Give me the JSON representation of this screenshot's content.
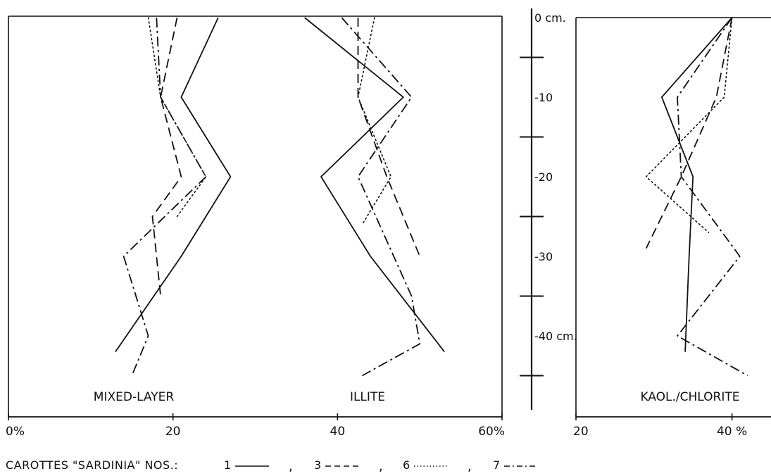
{
  "chart_data": [
    {
      "type": "line",
      "panel": "left",
      "x_ticks": [
        "0%",
        "20",
        "40",
        "60%"
      ],
      "xlim": [
        0,
        60
      ],
      "ylim": [
        0,
        -48
      ],
      "labels": [
        "MIXED-LAYER",
        "ILLITE"
      ],
      "series": [
        {
          "label_ref": "MIXED-LAYER",
          "style": "solid",
          "points": [
            [
              25.5,
              0
            ],
            [
              21,
              -10
            ],
            [
              27,
              -20
            ],
            [
              21,
              -30
            ],
            [
              13,
              -42
            ]
          ]
        },
        {
          "label_ref": "MIXED-LAYER",
          "style": "dashed",
          "points": [
            [
              20.5,
              0
            ],
            [
              18.5,
              -10
            ],
            [
              21,
              -20
            ],
            [
              17.5,
              -25
            ],
            [
              18.5,
              -35
            ]
          ]
        },
        {
          "label_ref": "MIXED-LAYER",
          "style": "dotted",
          "points": [
            [
              17,
              0
            ],
            [
              18.5,
              -10
            ],
            [
              24,
              -20
            ],
            [
              20.5,
              -25
            ]
          ]
        },
        {
          "label_ref": "MIXED-LAYER",
          "style": "dashdot",
          "points": [
            [
              18,
              0
            ],
            [
              18.5,
              -10
            ],
            [
              24,
              -20
            ],
            [
              14,
              -30
            ],
            [
              17,
              -40
            ],
            [
              15,
              -45
            ]
          ]
        },
        {
          "label_ref": "ILLITE",
          "style": "solid",
          "points": [
            [
              36,
              0
            ],
            [
              48,
              -10
            ],
            [
              38,
              -20
            ],
            [
              44,
              -30
            ],
            [
              53,
              -42
            ]
          ]
        },
        {
          "label_ref": "ILLITE",
          "style": "dashed",
          "points": [
            [
              42.5,
              0
            ],
            [
              42.5,
              -10
            ],
            [
              46,
              -20
            ],
            [
              50,
              -30
            ]
          ]
        },
        {
          "label_ref": "ILLITE",
          "style": "dotted",
          "points": [
            [
              44.5,
              0
            ],
            [
              42.5,
              -10
            ],
            [
              46.5,
              -20
            ],
            [
              43,
              -26
            ]
          ]
        },
        {
          "label_ref": "ILLITE",
          "style": "dashdot",
          "points": [
            [
              40.5,
              0
            ],
            [
              49,
              -10
            ],
            [
              42.5,
              -20
            ],
            [
              49,
              -35
            ],
            [
              50,
              -41
            ],
            [
              43,
              -45
            ]
          ]
        }
      ]
    },
    {
      "type": "line",
      "panel": "right",
      "x_ticks": [
        "20",
        "40 %"
      ],
      "xlim": [
        20,
        45
      ],
      "ylim": [
        0,
        -48
      ],
      "labels": [
        "KAOL./CHLORITE"
      ],
      "series": [
        {
          "label_ref": "KAOL./CHLORITE",
          "style": "solid",
          "points": [
            [
              40,
              0
            ],
            [
              31,
              -10
            ],
            [
              35,
              -20
            ],
            [
              34.5,
              -30
            ],
            [
              34,
              -42
            ]
          ]
        },
        {
          "label_ref": "KAOL./CHLORITE",
          "style": "dashed",
          "points": [
            [
              40,
              0
            ],
            [
              38,
              -10
            ],
            [
              33.5,
              -20
            ],
            [
              29,
              -29
            ]
          ]
        },
        {
          "label_ref": "KAOL./CHLORITE",
          "style": "dotted",
          "points": [
            [
              40,
              0
            ],
            [
              39,
              -10
            ],
            [
              29,
              -20
            ],
            [
              37,
              -27
            ]
          ]
        },
        {
          "label_ref": "KAOL./CHLORITE",
          "style": "dashdot",
          "points": [
            [
              40,
              0
            ],
            [
              33,
              -10
            ],
            [
              33.5,
              -20
            ],
            [
              41,
              -30
            ],
            [
              33,
              -40
            ],
            [
              42,
              -45
            ]
          ]
        }
      ]
    }
  ],
  "depth_axis": {
    "labels": [
      {
        "depth": 0,
        "text": "0 cm."
      },
      {
        "depth": -10,
        "text": "-10"
      },
      {
        "depth": -20,
        "text": "-20"
      },
      {
        "depth": -30,
        "text": "-30"
      },
      {
        "depth": -40,
        "text": "-40 cm."
      }
    ],
    "ticks": [
      -5,
      -15,
      -25,
      -35,
      -45
    ]
  },
  "legend": {
    "prefix": "CAROTTES \"SARDINIA\" NOS.:",
    "items": [
      {
        "number": "1",
        "style": "solid"
      },
      {
        "number": "3",
        "style": "dashed"
      },
      {
        "number": "6",
        "style": "dotted"
      },
      {
        "number": "7",
        "style": "dashdot"
      }
    ],
    "separator": ","
  }
}
